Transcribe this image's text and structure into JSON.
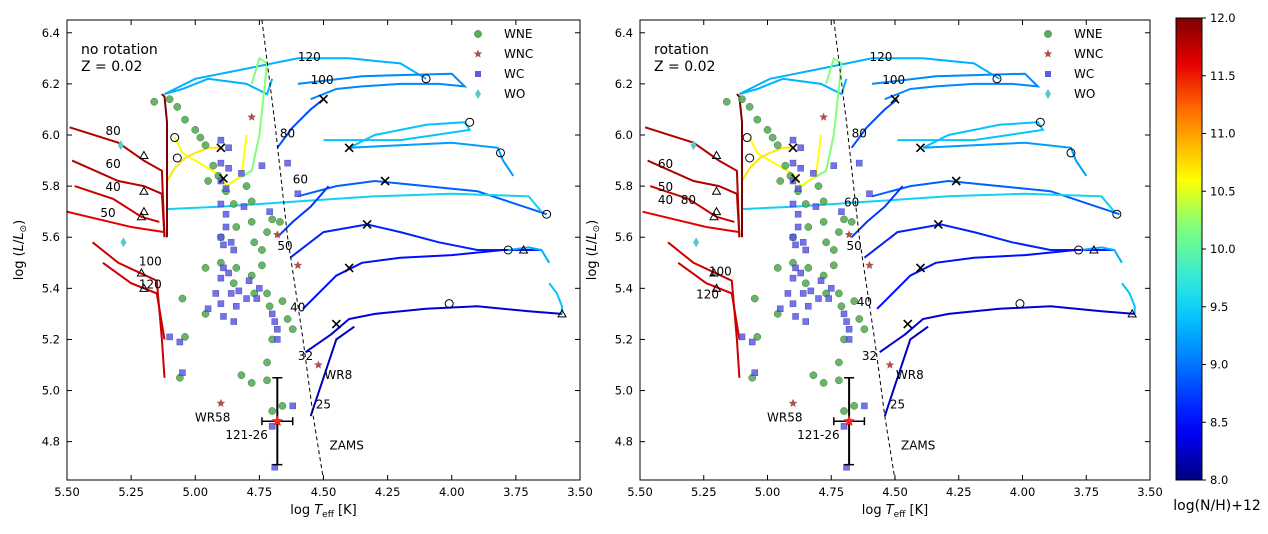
{
  "chart_data": [
    {
      "type": "scatter",
      "panel": "left",
      "annotation": [
        "no rotation",
        "Z = 0.02"
      ],
      "xlabel": "log T_eff  [K]",
      "ylabel": "log (L/L_sun)",
      "xlim": [
        5.5,
        3.5
      ],
      "ylim": [
        4.65,
        6.45
      ],
      "xticks": [
        "5.50",
        "5.25",
        "5.00",
        "4.75",
        "4.50",
        "4.25",
        "4.00",
        "3.75",
        "3.50"
      ],
      "yticks": [
        "4.8",
        "5.0",
        "5.2",
        "5.4",
        "5.6",
        "5.8",
        "6.0",
        "6.2",
        "6.4"
      ],
      "legend": [
        "WNE",
        "WNC",
        "WC",
        "WO"
      ],
      "track_labels": [
        {
          "text": "120",
          "x": 4.6,
          "y": 6.29
        },
        {
          "text": "100",
          "x": 4.55,
          "y": 6.2
        },
        {
          "text": "80",
          "x": 4.67,
          "y": 5.99
        },
        {
          "text": "60",
          "x": 4.62,
          "y": 5.81
        },
        {
          "text": "50",
          "x": 4.68,
          "y": 5.55
        },
        {
          "text": "40",
          "x": 4.63,
          "y": 5.31
        },
        {
          "text": "32",
          "x": 4.6,
          "y": 5.12
        },
        {
          "text": "25",
          "x": 4.53,
          "y": 4.93
        },
        {
          "text": "80",
          "x": 5.35,
          "y": 6.0
        },
        {
          "text": "60",
          "x": 5.35,
          "y": 5.87
        },
        {
          "text": "40",
          "x": 5.35,
          "y": 5.78
        },
        {
          "text": "50",
          "x": 5.37,
          "y": 5.68
        },
        {
          "text": "100",
          "x": 5.22,
          "y": 5.49
        },
        {
          "text": "120",
          "x": 5.22,
          "y": 5.4
        }
      ],
      "labels": [
        "WR8",
        "WR58",
        "121-26",
        "ZAMS"
      ],
      "WNE": [
        [
          5.16,
          6.13
        ],
        [
          5.1,
          6.14
        ],
        [
          5.07,
          6.11
        ],
        [
          5.04,
          6.06
        ],
        [
          5.0,
          6.02
        ],
        [
          4.98,
          5.99
        ],
        [
          4.96,
          5.96
        ],
        [
          4.93,
          5.88
        ],
        [
          4.95,
          5.82
        ],
        [
          4.91,
          5.84
        ],
        [
          4.88,
          5.78
        ],
        [
          4.85,
          5.73
        ],
        [
          4.78,
          5.66
        ],
        [
          4.84,
          5.64
        ],
        [
          4.77,
          5.58
        ],
        [
          4.74,
          5.55
        ],
        [
          4.72,
          5.62
        ],
        [
          4.7,
          5.67
        ],
        [
          4.67,
          5.66
        ],
        [
          4.74,
          5.49
        ],
        [
          4.78,
          5.45
        ],
        [
          4.84,
          5.48
        ],
        [
          4.9,
          5.5
        ],
        [
          4.9,
          5.6
        ],
        [
          4.96,
          5.48
        ],
        [
          4.85,
          5.42
        ],
        [
          4.77,
          5.38
        ],
        [
          4.72,
          5.38
        ],
        [
          4.71,
          5.33
        ],
        [
          4.66,
          5.35
        ],
        [
          4.64,
          5.28
        ],
        [
          4.62,
          5.24
        ],
        [
          4.7,
          5.2
        ],
        [
          5.05,
          5.36
        ],
        [
          5.04,
          5.21
        ],
        [
          4.96,
          5.3
        ],
        [
          4.72,
          5.11
        ],
        [
          4.72,
          5.04
        ],
        [
          4.78,
          5.03
        ],
        [
          4.82,
          5.06
        ],
        [
          4.7,
          4.92
        ],
        [
          4.66,
          4.94
        ],
        [
          5.06,
          5.05
        ],
        [
          4.78,
          5.74
        ],
        [
          4.8,
          5.8
        ]
      ],
      "WNC": [
        [
          4.78,
          6.07
        ],
        [
          4.68,
          5.61
        ],
        [
          4.6,
          5.49
        ],
        [
          4.52,
          5.1
        ],
        [
          4.9,
          4.95
        ]
      ],
      "WC": [
        [
          4.9,
          5.98
        ],
        [
          4.87,
          5.95
        ],
        [
          4.9,
          5.89
        ],
        [
          4.87,
          5.87
        ],
        [
          4.9,
          5.82
        ],
        [
          4.88,
          5.79
        ],
        [
          4.9,
          5.73
        ],
        [
          4.88,
          5.69
        ],
        [
          4.82,
          5.85
        ],
        [
          4.81,
          5.72
        ],
        [
          4.74,
          5.88
        ],
        [
          4.71,
          5.7
        ],
        [
          4.64,
          5.89
        ],
        [
          4.6,
          5.77
        ],
        [
          4.88,
          5.64
        ],
        [
          4.9,
          5.6
        ],
        [
          4.89,
          5.57
        ],
        [
          4.86,
          5.58
        ],
        [
          4.85,
          5.55
        ],
        [
          4.89,
          5.48
        ],
        [
          4.87,
          5.46
        ],
        [
          4.9,
          5.44
        ],
        [
          4.86,
          5.38
        ],
        [
          4.83,
          5.39
        ],
        [
          4.79,
          5.43
        ],
        [
          4.75,
          5.4
        ],
        [
          4.84,
          5.33
        ],
        [
          4.89,
          5.29
        ],
        [
          4.85,
          5.27
        ],
        [
          4.76,
          5.36
        ],
        [
          4.7,
          5.3
        ],
        [
          4.69,
          5.27
        ],
        [
          4.68,
          5.24
        ],
        [
          4.68,
          5.2
        ],
        [
          4.92,
          5.38
        ],
        [
          4.9,
          5.34
        ],
        [
          4.95,
          5.32
        ],
        [
          5.1,
          5.21
        ],
        [
          5.06,
          5.19
        ],
        [
          5.05,
          5.07
        ],
        [
          4.7,
          4.86
        ],
        [
          4.69,
          4.7
        ],
        [
          4.62,
          4.94
        ],
        [
          4.8,
          5.36
        ]
      ],
      "WO": [
        [
          5.29,
          5.96
        ],
        [
          5.28,
          5.58
        ]
      ],
      "markers": {
        "triangles": [
          [
            5.2,
            5.92
          ],
          [
            5.2,
            5.78
          ],
          [
            5.2,
            5.7
          ],
          [
            5.21,
            5.68
          ],
          [
            5.21,
            5.46
          ],
          [
            5.2,
            5.4
          ],
          [
            3.72,
            5.55
          ],
          [
            3.57,
            5.3
          ]
        ],
        "circles": [
          [
            5.08,
            5.99
          ],
          [
            5.07,
            5.91
          ],
          [
            4.1,
            6.22
          ],
          [
            3.93,
            6.05
          ],
          [
            3.81,
            5.93
          ],
          [
            3.63,
            5.69
          ],
          [
            3.78,
            5.55
          ],
          [
            4.01,
            5.34
          ]
        ],
        "crosses": [
          [
            4.9,
            5.95
          ],
          [
            4.89,
            5.83
          ],
          [
            4.5,
            6.14
          ],
          [
            4.4,
            5.95
          ],
          [
            4.26,
            5.82
          ],
          [
            4.33,
            5.65
          ],
          [
            4.4,
            5.48
          ],
          [
            4.45,
            5.26
          ]
        ]
      },
      "error_bar": {
        "x": 4.68,
        "y": 4.88,
        "xerr": 0.06,
        "yerr": 0.17
      }
    },
    {
      "type": "scatter",
      "panel": "right",
      "annotation": [
        "rotation",
        "Z = 0.02"
      ],
      "xlabel": "log T_eff  [K]",
      "ylabel": "log (L/L_sun)",
      "xlim": [
        5.5,
        3.5
      ],
      "ylim": [
        4.65,
        6.45
      ],
      "xticks": [
        "5.50",
        "5.25",
        "5.00",
        "4.75",
        "4.50",
        "4.25",
        "4.00",
        "3.75",
        "3.50"
      ],
      "yticks": [
        "4.8",
        "5.0",
        "5.2",
        "5.4",
        "5.6",
        "5.8",
        "6.0",
        "6.2",
        "6.4"
      ],
      "legend": [
        "WNE",
        "WNC",
        "WC",
        "WO"
      ],
      "track_labels": [
        {
          "text": "120",
          "x": 4.6,
          "y": 6.29
        },
        {
          "text": "100",
          "x": 4.55,
          "y": 6.2
        },
        {
          "text": "80",
          "x": 4.67,
          "y": 5.99
        },
        {
          "text": "60",
          "x": 4.7,
          "y": 5.72
        },
        {
          "text": "50",
          "x": 4.69,
          "y": 5.55
        },
        {
          "text": "40",
          "x": 4.65,
          "y": 5.33
        },
        {
          "text": "32",
          "x": 4.63,
          "y": 5.12
        },
        {
          "text": "25",
          "x": 4.52,
          "y": 4.93
        },
        {
          "text": "60",
          "x": 5.43,
          "y": 5.87
        },
        {
          "text": "50",
          "x": 5.43,
          "y": 5.78
        },
        {
          "text": "80",
          "x": 5.34,
          "y": 5.73
        },
        {
          "text": "40",
          "x": 5.43,
          "y": 5.73
        },
        {
          "text": "100",
          "x": 5.23,
          "y": 5.45
        },
        {
          "text": "120",
          "x": 5.28,
          "y": 5.36
        }
      ],
      "labels": [
        "WR8",
        "WR58",
        "121-26",
        "ZAMS"
      ],
      "colorbar": {
        "label": "log(N/H)+12",
        "range": [
          8.0,
          12.0
        ],
        "ticks": [
          "8.0",
          "8.5",
          "9.0",
          "9.5",
          "10.0",
          "10.5",
          "11.0",
          "11.5",
          "12.0"
        ]
      }
    }
  ]
}
